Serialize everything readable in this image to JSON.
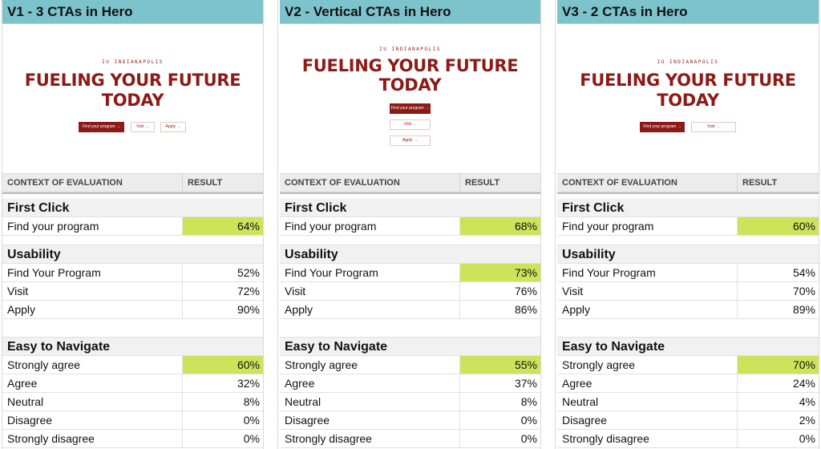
{
  "variants": [
    {
      "header": "V1 - 3 CTAs in Hero",
      "hero": {
        "eyebrow": "IU INDIANAPOLIS",
        "title_line1": "FUELING YOUR FUTURE",
        "title_line2": "TODAY",
        "cta_primary": "Find your program →",
        "cta_visit": "Visit →",
        "cta_apply": "Apply →"
      },
      "table_headers": {
        "context": "CONTEXT OF EVALUATION",
        "result": "RESULT"
      },
      "first_click": {
        "title": "First Click",
        "rows": [
          {
            "label": "Find your program",
            "value": "64%",
            "highlight": true
          }
        ]
      },
      "usability": {
        "title": "Usability",
        "rows": [
          {
            "label": "Find Your Program",
            "value": "52%",
            "highlight": false
          },
          {
            "label": "Visit",
            "value": "72%",
            "highlight": false
          },
          {
            "label": "Apply",
            "value": "90%",
            "highlight": false
          }
        ]
      },
      "easy": {
        "title": "Easy to Navigate",
        "rows": [
          {
            "label": "Strongly agree",
            "value": "60%",
            "highlight": true
          },
          {
            "label": "Agree",
            "value": "32%",
            "highlight": false
          },
          {
            "label": "Neutral",
            "value": "8%",
            "highlight": false
          },
          {
            "label": "Disagree",
            "value": "0%",
            "highlight": false
          },
          {
            "label": "Strongly disagree",
            "value": "0%",
            "highlight": false
          }
        ]
      }
    },
    {
      "header": "V2 - Vertical CTAs in Hero",
      "hero": {
        "eyebrow": "IU INDIANAPOLIS",
        "title_line1": "FUELING YOUR FUTURE",
        "title_line2": "TODAY",
        "cta_primary": "Find your program →",
        "cta_visit": "Visit →",
        "cta_apply": "Apply →"
      },
      "table_headers": {
        "context": "CONTEXT OF EVALUATION",
        "result": "RESULT"
      },
      "first_click": {
        "title": "First Click",
        "rows": [
          {
            "label": "Find your program",
            "value": "68%",
            "highlight": true
          }
        ]
      },
      "usability": {
        "title": "Usability",
        "rows": [
          {
            "label": "Find Your Program",
            "value": "73%",
            "highlight": true
          },
          {
            "label": "Visit",
            "value": "76%",
            "highlight": false
          },
          {
            "label": "Apply",
            "value": "86%",
            "highlight": false
          }
        ]
      },
      "easy": {
        "title": "Easy to Navigate",
        "rows": [
          {
            "label": "Strongly agree",
            "value": "55%",
            "highlight": true
          },
          {
            "label": "Agree",
            "value": "37%",
            "highlight": false
          },
          {
            "label": "Neutral",
            "value": "8%",
            "highlight": false
          },
          {
            "label": "Disagree",
            "value": "0%",
            "highlight": false
          },
          {
            "label": "Strongly disagree",
            "value": "0%",
            "highlight": false
          }
        ]
      }
    },
    {
      "header": "V3 - 2 CTAs in Hero",
      "hero": {
        "eyebrow": "IU INDIANAPOLIS",
        "title_line1": "FUELING YOUR FUTURE",
        "title_line2": "TODAY",
        "cta_primary": "Find your program →",
        "cta_visit": "Visit →"
      },
      "table_headers": {
        "context": "CONTEXT OF EVALUATION",
        "result": "RESULT"
      },
      "first_click": {
        "title": "First Click",
        "rows": [
          {
            "label": "Find your program",
            "value": "60%",
            "highlight": true
          }
        ]
      },
      "usability": {
        "title": "Usability",
        "rows": [
          {
            "label": "Find Your Program",
            "value": "54%",
            "highlight": false
          },
          {
            "label": "Visit",
            "value": "70%",
            "highlight": false
          },
          {
            "label": "Apply",
            "value": "89%",
            "highlight": false
          }
        ]
      },
      "easy": {
        "title": "Easy to Navigate",
        "rows": [
          {
            "label": "Strongly agree",
            "value": "70%",
            "highlight": true
          },
          {
            "label": "Agree",
            "value": "24%",
            "highlight": false
          },
          {
            "label": "Neutral",
            "value": "4%",
            "highlight": false
          },
          {
            "label": "Disagree",
            "value": "2%",
            "highlight": false
          },
          {
            "label": "Strongly disagree",
            "value": "0%",
            "highlight": false
          }
        ]
      }
    }
  ],
  "colors": {
    "header_bg": "#7cc3cb",
    "highlight": "#cde35a",
    "brand_red": "#8d1a16"
  }
}
